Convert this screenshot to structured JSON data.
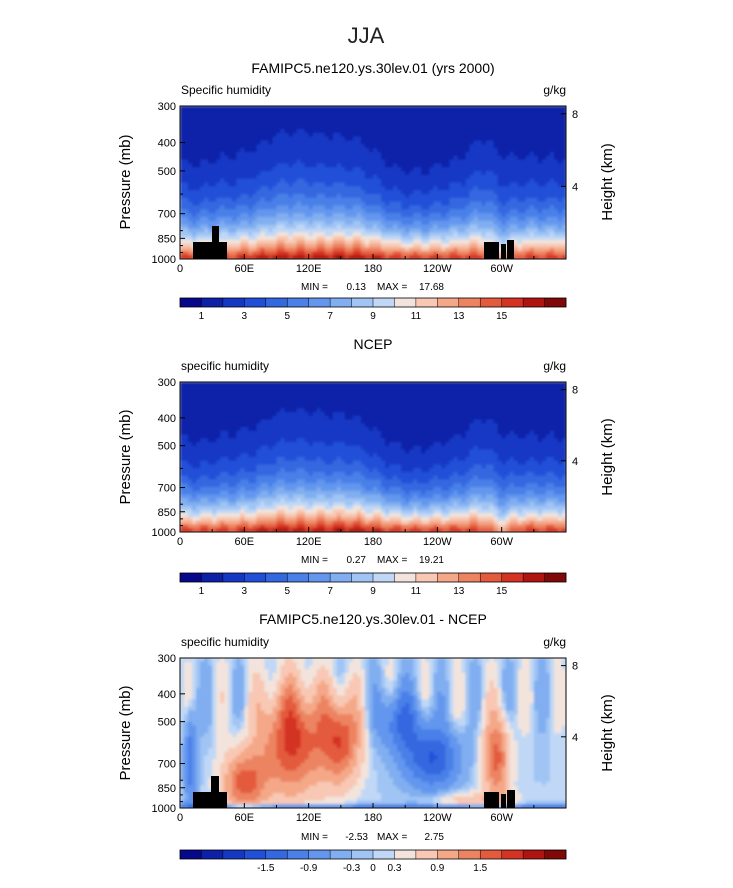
{
  "figure": {
    "title": "JJA",
    "panels": [
      {
        "title": "FAMIPC5.ne120.ys.30lev.01 (yrs 2000)",
        "left_label": "Specific humidity",
        "right_label": "g/kg",
        "stats": {
          "min_label": "MIN =",
          "min": "0.13",
          "max_label": "MAX =",
          "max": "17.68"
        },
        "colorbar": {
          "colors": [
            "#08088c",
            "#0c20a8",
            "#1438c4",
            "#2050d8",
            "#3468e0",
            "#4a80e8",
            "#6496ee",
            "#80aef0",
            "#a0c4f4",
            "#c0d8f6",
            "#f2e4dc",
            "#f8c8b4",
            "#f4a888",
            "#ec8462",
            "#e45a3c",
            "#d43222",
            "#b01410",
            "#800806"
          ],
          "labels": [
            "1",
            "3",
            "5",
            "7",
            "9",
            "11",
            "13",
            "15"
          ]
        }
      },
      {
        "title": "NCEP",
        "left_label": "specific humidity",
        "right_label": "g/kg",
        "stats": {
          "min_label": "MIN =",
          "min": "0.27",
          "max_label": "MAX =",
          "max": "19.21"
        },
        "colorbar": {
          "colors": [
            "#08088c",
            "#0c20a8",
            "#1438c4",
            "#2050d8",
            "#3468e0",
            "#4a80e8",
            "#6496ee",
            "#80aef0",
            "#a0c4f4",
            "#c0d8f6",
            "#f2e4dc",
            "#f8c8b4",
            "#f4a888",
            "#ec8462",
            "#e45a3c",
            "#d43222",
            "#b01410",
            "#800806"
          ],
          "labels": [
            "1",
            "3",
            "5",
            "7",
            "9",
            "11",
            "13",
            "15"
          ]
        }
      },
      {
        "title": "FAMIPC5.ne120.ys.30lev.01 - NCEP",
        "left_label": "specific humidity",
        "right_label": "g/kg",
        "stats": {
          "min_label": "MIN =",
          "min": "-2.53",
          "max_label": "MAX =",
          "max": "2.75"
        },
        "colorbar": {
          "colors": [
            "#08088c",
            "#0c20a8",
            "#1438c4",
            "#2050d8",
            "#3468e0",
            "#4a80e8",
            "#6496ee",
            "#80aef0",
            "#a0c4f4",
            "#c0d8f6",
            "#f2e4dc",
            "#f8c8b4",
            "#f4a888",
            "#ec8462",
            "#e45a3c",
            "#d43222",
            "#b01410",
            "#800806"
          ],
          "labels": [
            "-1.5",
            "-0.9",
            "-0.3",
            "0",
            "0.3",
            "0.9",
            "1.5"
          ]
        }
      }
    ]
  },
  "chart_data": [
    {
      "type": "heatmap",
      "title": "FAMIPC5.ne120.ys.30lev.01 (yrs 2000)",
      "variable": "Specific humidity",
      "units": "g/kg",
      "xlabel": "",
      "ylabel": "Pressure (mb)",
      "y2label": "Height (km)",
      "xticks": [
        "0",
        "60E",
        "120E",
        "180",
        "120W",
        "60W"
      ],
      "xtick_values": [
        0,
        60,
        120,
        180,
        240,
        300
      ],
      "xlim": [
        0,
        360
      ],
      "yticks": [
        "300",
        "400",
        "500",
        "700",
        "850",
        "1000"
      ],
      "ytick_values": [
        300,
        400,
        500,
        700,
        850,
        1000
      ],
      "ylim": [
        1000,
        300
      ],
      "y2ticks": [
        "8",
        "4"
      ],
      "levels": [
        0,
        1,
        2,
        3,
        4,
        5,
        6,
        7,
        8,
        9,
        10,
        11,
        12,
        13,
        14,
        15,
        16
      ],
      "min": 0.13,
      "max": 17.68
    },
    {
      "type": "heatmap",
      "title": "NCEP",
      "variable": "specific humidity",
      "units": "g/kg",
      "ylabel": "Pressure (mb)",
      "y2label": "Height (km)",
      "xticks": [
        "0",
        "60E",
        "120E",
        "180",
        "120W",
        "60W"
      ],
      "xtick_values": [
        0,
        60,
        120,
        180,
        240,
        300
      ],
      "xlim": [
        0,
        360
      ],
      "yticks": [
        "300",
        "400",
        "500",
        "700",
        "850",
        "1000"
      ],
      "ytick_values": [
        300,
        400,
        500,
        700,
        850,
        1000
      ],
      "ylim": [
        1000,
        300
      ],
      "y2ticks": [
        "8",
        "4"
      ],
      "levels": [
        0,
        1,
        2,
        3,
        4,
        5,
        6,
        7,
        8,
        9,
        10,
        11,
        12,
        13,
        14,
        15,
        16
      ],
      "min": 0.27,
      "max": 19.21
    },
    {
      "type": "heatmap",
      "title": "FAMIPC5.ne120.ys.30lev.01 - NCEP",
      "variable": "specific humidity",
      "units": "g/kg",
      "ylabel": "Pressure (mb)",
      "y2label": "Height (km)",
      "xticks": [
        "0",
        "60E",
        "120E",
        "180",
        "120W",
        "60W"
      ],
      "xtick_values": [
        0,
        60,
        120,
        180,
        240,
        300
      ],
      "xlim": [
        0,
        360
      ],
      "yticks": [
        "300",
        "400",
        "500",
        "700",
        "850",
        "1000"
      ],
      "ytick_values": [
        300,
        400,
        500,
        700,
        850,
        1000
      ],
      "ylim": [
        1000,
        300
      ],
      "y2ticks": [
        "8",
        "4"
      ],
      "levels": [
        -2.1,
        -1.8,
        -1.5,
        -1.2,
        -0.9,
        -0.6,
        -0.3,
        -0.1,
        0,
        0.1,
        0.3,
        0.6,
        0.9,
        1.2,
        1.5,
        1.8,
        2.1
      ],
      "min": -2.53,
      "max": 2.75
    }
  ]
}
